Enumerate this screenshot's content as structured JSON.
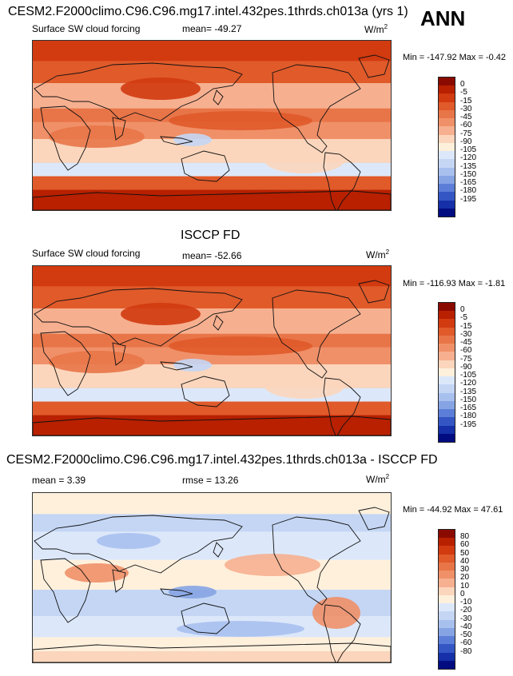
{
  "header": {
    "title_top": "CESM2.F2000climo.C96.C96.mg17.intel.432pes.1thrds.ch013a (yrs 1)",
    "season": "ANN"
  },
  "panels": [
    {
      "id": "model",
      "title": "",
      "field": "Surface SW cloud forcing",
      "stat": "mean= -49.27",
      "units": "W/m",
      "units_exp": "2",
      "minmax": "Min = -147.92 Max =  -0.42",
      "palette": "abs",
      "colorbar_labels": [
        "0",
        "-5",
        "-15",
        "-30",
        "-45",
        "-60",
        "-75",
        "-90",
        "-105",
        "-120",
        "-135",
        "-150",
        "-165",
        "-180",
        "-195"
      ]
    },
    {
      "id": "obs",
      "title": "ISCCP FD",
      "field": "Surface SW cloud forcing",
      "stat": "mean= -52.66",
      "units": "W/m",
      "units_exp": "2",
      "minmax": "Min = -116.93 Max =  -1.81",
      "palette": "abs",
      "colorbar_labels": [
        "0",
        "-5",
        "-15",
        "-30",
        "-45",
        "-60",
        "-75",
        "-90",
        "-105",
        "-120",
        "-135",
        "-150",
        "-165",
        "-180",
        "-195"
      ]
    },
    {
      "id": "diff",
      "title": "CESM2.F2000climo.C96.C96.mg17.intel.432pes.1thrds.ch013a - ISCCP FD",
      "stat_left": "mean =   3.39",
      "stat": "rmse =  13.26",
      "units": "W/m",
      "units_exp": "2",
      "minmax": "Min = -44.92 Max =  47.61",
      "palette": "diff",
      "colorbar_labels": [
        "80",
        "60",
        "50",
        "40",
        "30",
        "20",
        "10",
        "0",
        "-10",
        "-20",
        "-30",
        "-40",
        "-50",
        "-60",
        "-80"
      ]
    }
  ],
  "colors": {
    "abs": [
      "#8b0a00",
      "#b82000",
      "#d23a10",
      "#e05a2a",
      "#e87548",
      "#f09068",
      "#f6b090",
      "#fbd6bc",
      "#fff0dc",
      "#dce8fa",
      "#c4d6f4",
      "#a8c0ee",
      "#86a4e4",
      "#5c7ed8",
      "#3456c4",
      "#1530a8",
      "#000c80"
    ],
    "diff": [
      "#8b0a00",
      "#b82000",
      "#d23a10",
      "#e05a2a",
      "#e87548",
      "#f09068",
      "#f6b090",
      "#fbd6bc",
      "#fff0dc",
      "#dce8fa",
      "#c4d6f4",
      "#a8c0ee",
      "#86a4e4",
      "#5c7ed8",
      "#3456c4",
      "#1530a8",
      "#000c80"
    ]
  }
}
